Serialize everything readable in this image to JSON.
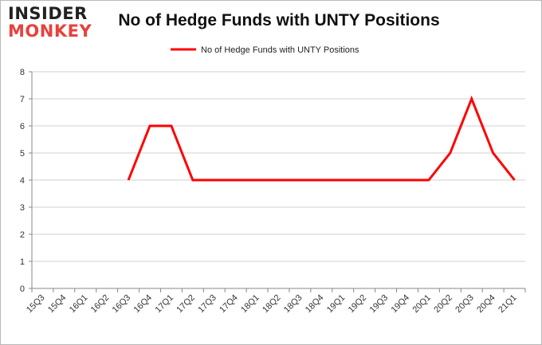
{
  "logo": {
    "line1": "INSIDER",
    "line2": "MONKEY"
  },
  "chart_data": {
    "type": "line",
    "title": "No of Hedge Funds with UNTY Positions",
    "xlabel": "",
    "ylabel": "",
    "categories": [
      "15Q3",
      "15Q4",
      "16Q1",
      "16Q2",
      "16Q3",
      "16Q4",
      "17Q1",
      "17Q2",
      "17Q3",
      "17Q4",
      "18Q1",
      "18Q2",
      "18Q3",
      "18Q4",
      "19Q1",
      "19Q2",
      "19Q3",
      "19Q4",
      "20Q1",
      "20Q2",
      "20Q3",
      "20Q4",
      "21Q1"
    ],
    "series": [
      {
        "name": "No of Hedge Funds with UNTY Positions",
        "color": "#ff0000",
        "values": [
          null,
          null,
          null,
          null,
          4,
          6,
          6,
          4,
          4,
          4,
          4,
          4,
          4,
          4,
          4,
          4,
          4,
          4,
          4,
          5,
          7,
          5,
          4
        ]
      }
    ],
    "ylim": [
      0,
      8
    ],
    "yticks": [
      0,
      1,
      2,
      3,
      4,
      5,
      6,
      7,
      8
    ],
    "grid": true,
    "legend": "top-center"
  }
}
